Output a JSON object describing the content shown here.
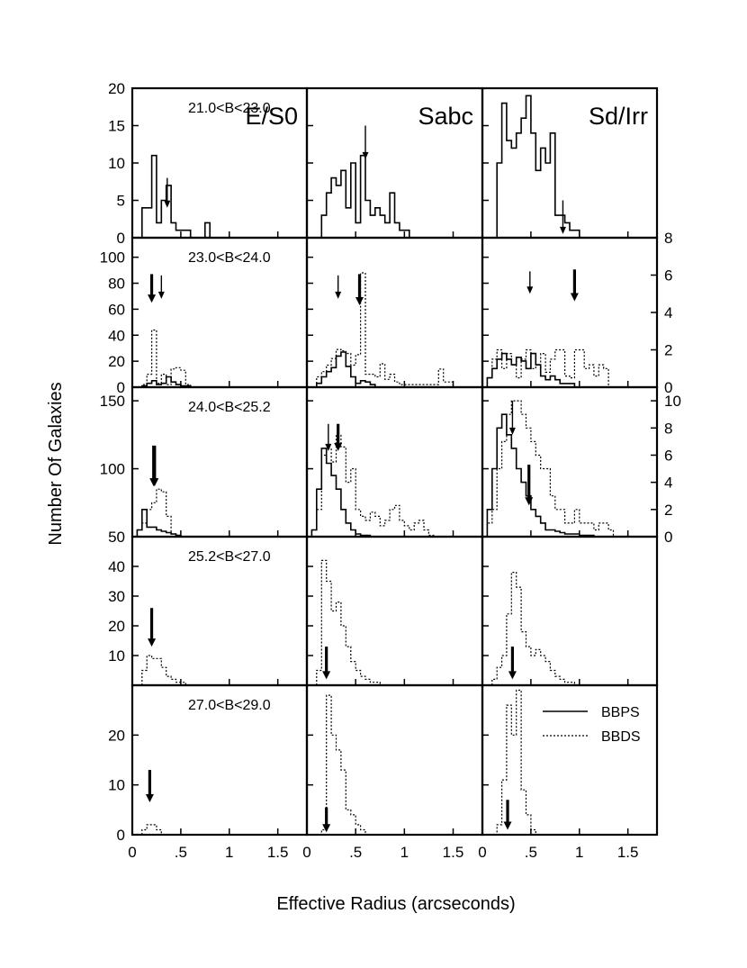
{
  "chart_data": {
    "type": "histogram-grid",
    "xlabel": "Effective Radius (arcseconds)",
    "ylabel": "Number Of Galaxies",
    "xlim": [
      0,
      1.8
    ],
    "x_ticks": [
      0,
      0.5,
      1.0,
      1.5
    ],
    "x_tick_labels": [
      "0",
      ".5",
      "1",
      "1.5"
    ],
    "columns": [
      "E/S0",
      "Sabc",
      "Sd/Irr"
    ],
    "legend": {
      "position": "bottom-right panel, upper right",
      "entries": [
        {
          "name": "BBPS",
          "style": "solid"
        },
        {
          "name": "BBDS",
          "style": "dotted"
        }
      ]
    },
    "bin_width": 0.05,
    "rows": [
      {
        "mag_range": "21.0<B<23.0",
        "ylim": [
          0,
          20
        ],
        "y_ticks": [
          0,
          5,
          10,
          15,
          20
        ],
        "panels": [
          {
            "x0": 0.1,
            "bbps": [
              4,
              4,
              11,
              2,
              5,
              7,
              2,
              1,
              1,
              1,
              0,
              0,
              0,
              2,
              0
            ],
            "bbds": [],
            "arrows": [
              {
                "x": 0.36,
                "series": "BBPS",
                "y": 4,
                "len": 4
              }
            ]
          },
          {
            "x0": 0.15,
            "bbps": [
              3,
              6,
              8,
              7,
              9,
              4,
              10,
              2,
              11,
              5,
              3,
              4,
              3,
              2,
              6,
              2,
              1,
              1
            ],
            "bbds": [],
            "arrows": [
              {
                "x": 0.6,
                "series": "BBPS",
                "y": 10.5,
                "len": 4.5
              }
            ]
          },
          {
            "x0": 0.15,
            "bbps": [
              10,
              18,
              13,
              12,
              14,
              16,
              19,
              14,
              9,
              12,
              10,
              14,
              3,
              3,
              2,
              1,
              1
            ],
            "bbds": [],
            "arrows": [
              {
                "x": 0.83,
                "series": "BBPS",
                "y": 0.5,
                "len": 4.5
              }
            ]
          }
        ]
      },
      {
        "mag_range": "23.0<B<24.0",
        "ylim": [
          0,
          115
        ],
        "y_ticks": [
          0,
          20,
          40,
          60,
          80,
          100
        ],
        "right_ylim": [
          0,
          8
        ],
        "right_y_ticks": [
          0,
          2,
          4,
          6,
          8
        ],
        "panels": [
          {
            "x0": 0.1,
            "bbps": [
              1,
              3,
              5,
              2,
              3,
              8,
              4,
              2,
              1,
              1
            ],
            "bbds": [
              2,
              10,
              44,
              3,
              10,
              2,
              14,
              15,
              13,
              2
            ],
            "arrows": [
              {
                "x": 0.2,
                "series": "BBDS",
                "y": 65,
                "len": 22,
                "bold": true
              },
              {
                "x": 0.3,
                "series": "BBPS",
                "y": 68,
                "len": 18
              }
            ]
          },
          {
            "x0": 0.1,
            "bbps": [
              3,
              8,
              12,
              15,
              24,
              27,
              16,
              8,
              3,
              5,
              4,
              2
            ],
            "bbds": [
              8,
              12,
              17,
              22,
              29,
              28,
              26,
              17,
              25,
              88,
              10,
              10,
              8,
              18,
              6,
              10,
              4,
              2,
              2,
              2,
              2,
              2,
              2,
              2,
              2,
              14,
              4,
              4
            ],
            "arrows": [
              {
                "x": 0.32,
                "series": "BBPS",
                "y": 68,
                "len": 18
              },
              {
                "x": 0.54,
                "series": "BBDS",
                "y": 63,
                "len": 24,
                "bold": true
              }
            ]
          },
          {
            "x0": 0.05,
            "bbps": [
              0.5,
              1.0,
              1.5,
              1.8,
              1.5,
              1.2,
              1.6,
              1.4,
              1.0,
              1.8,
              1.2,
              0.6,
              0.4,
              0.6,
              0.4,
              0.2,
              0.2,
              0.2
            ],
            "bbds": [
              0.5,
              1.5,
              2.0,
              1.0,
              1.8,
              1.2,
              0.5,
              1.5,
              2.0,
              1.0,
              1.2,
              1.8,
              0.8,
              1.5,
              2.0,
              2.0,
              0.6,
              0.5,
              2.0,
              2.0,
              1.0,
              1.2,
              0.6,
              1.2,
              1.0
            ],
            "arrows": [
              {
                "x": 0.49,
                "series": "BBDS",
                "y": 5.0,
                "len": 1.2
              },
              {
                "x": 0.95,
                "series": "BBDS",
                "y": 4.6,
                "len": 1.7,
                "bold": true
              }
            ]
          }
        ]
      },
      {
        "mag_range": "24.0<B<25.2",
        "ylim": [
          50,
          160
        ],
        "y_ticks": [
          50,
          100,
          150
        ],
        "right_ylim": [
          0,
          11
        ],
        "right_y_ticks": [
          0,
          2,
          4,
          6,
          8,
          10
        ],
        "panels": [
          {
            "x0": 0.05,
            "bbps": [
              55,
              70,
              57,
              57,
              55,
              54,
              53,
              52,
              51,
              50
            ],
            "bbds": [
              55,
              60,
              70,
              75,
              85,
              83,
              65,
              52,
              51,
              50
            ],
            "arrows": [
              {
                "x": 0.22,
                "series": "BBDS",
                "y": 87,
                "len": 30,
                "bold": true
              },
              {
                "x": 0.23,
                "series": "BBDS",
                "y": 87,
                "len": 30,
                "bold": true
              }
            ]
          },
          {
            "x0": 0.05,
            "bbps": [
              55,
              85,
              115,
              104,
              95,
              85,
              70,
              60,
              55,
              52,
              51,
              51,
              50,
              50,
              50,
              50,
              50,
              50
            ],
            "bbds": [
              55,
              70,
              110,
              115,
              105,
              125,
              116,
              90,
              100,
              70,
              65,
              62,
              68,
              65,
              58,
              62,
              70,
              73,
              62,
              58,
              55,
              60,
              62,
              55,
              51,
              50
            ],
            "arrows": [
              {
                "x": 0.22,
                "series": "BBPS",
                "y": 113,
                "len": 20
              },
              {
                "x": 0.32,
                "series": "BBDS",
                "y": 113,
                "len": 20,
                "bold": true
              }
            ]
          },
          {
            "x0": 0.05,
            "bbps": [
              2,
              5,
              8,
              9,
              7.5,
              6.5,
              5,
              4,
              3,
              2,
              1.5,
              1,
              0.5,
              0.5,
              0.4,
              0.3,
              0.2,
              0.2,
              0.2,
              0.1,
              0.1,
              0.1
            ],
            "bbds": [
              1,
              2,
              5,
              7,
              9,
              10,
              10,
              9,
              8,
              7,
              6,
              5,
              5,
              3,
              2,
              2,
              1,
              1,
              2,
              1,
              1,
              1,
              0.5,
              1,
              1,
              0.5
            ],
            "arrows": [
              {
                "x": 0.31,
                "series": "BBPS",
                "y": 7.5,
                "len": 2.5
              },
              {
                "x": 0.48,
                "series": "BBPS",
                "y": 2.3,
                "len": 3.0,
                "bold": true
              }
            ]
          }
        ]
      },
      {
        "mag_range": "25.2<B<27.0",
        "ylim": [
          0,
          50
        ],
        "y_ticks": [
          10,
          20,
          30,
          40
        ],
        "panels": [
          {
            "x0": 0.1,
            "bbps": [],
            "bbds": [
              5,
              10,
              9,
              9,
              6,
              3,
              2,
              1,
              1,
              0,
              0,
              0
            ],
            "arrows": [
              {
                "x": 0.2,
                "series": "BBDS",
                "y": 13,
                "len": 13,
                "bold": true
              }
            ]
          },
          {
            "x0": 0.1,
            "bbps": [],
            "bbds": [
              5,
              42,
              35,
              25,
              28,
              20,
              13,
              8,
              5,
              3,
              2,
              1,
              1,
              0,
              0,
              0
            ],
            "arrows": [
              {
                "x": 0.2,
                "series": "BBDS",
                "y": 2,
                "len": 11,
                "bold": true
              }
            ]
          },
          {
            "x0": 0.1,
            "bbps": [],
            "bbds": [
              2,
              6,
              10,
              24,
              38,
              33,
              18,
              13,
              10,
              12,
              10,
              8,
              5,
              3,
              2,
              1,
              1,
              0
            ],
            "arrows": [
              {
                "x": 0.31,
                "series": "BBDS",
                "y": 2,
                "len": 11,
                "bold": true
              }
            ]
          }
        ]
      },
      {
        "mag_range": "27.0<B<29.0",
        "ylim": [
          0,
          30
        ],
        "y_ticks": [
          0,
          10,
          20
        ],
        "panels": [
          {
            "x0": 0.1,
            "bbps": [],
            "bbds": [
              1,
              2,
              2,
              1,
              0,
              0,
              0,
              0,
              0,
              0,
              0,
              0
            ],
            "arrows": [
              {
                "x": 0.18,
                "series": "BBDS",
                "y": 6.5,
                "len": 6.5,
                "bold": true
              }
            ]
          },
          {
            "x0": 0.1,
            "bbps": [],
            "bbds": [
              0,
              1,
              28,
              20,
              17,
              13,
              5,
              4,
              2,
              1,
              0,
              0
            ],
            "arrows": [
              {
                "x": 0.2,
                "series": "BBDS",
                "y": 0.5,
                "len": 5,
                "bold": true
              }
            ]
          },
          {
            "x0": 0.1,
            "bbps": [],
            "bbds": [
              0,
              2,
              11,
              26,
              20,
              29,
              9,
              4,
              1,
              0,
              0,
              0
            ],
            "arrows": [
              {
                "x": 0.26,
                "series": "BBDS",
                "y": 1,
                "len": 6,
                "bold": true
              }
            ]
          }
        ]
      }
    ]
  }
}
